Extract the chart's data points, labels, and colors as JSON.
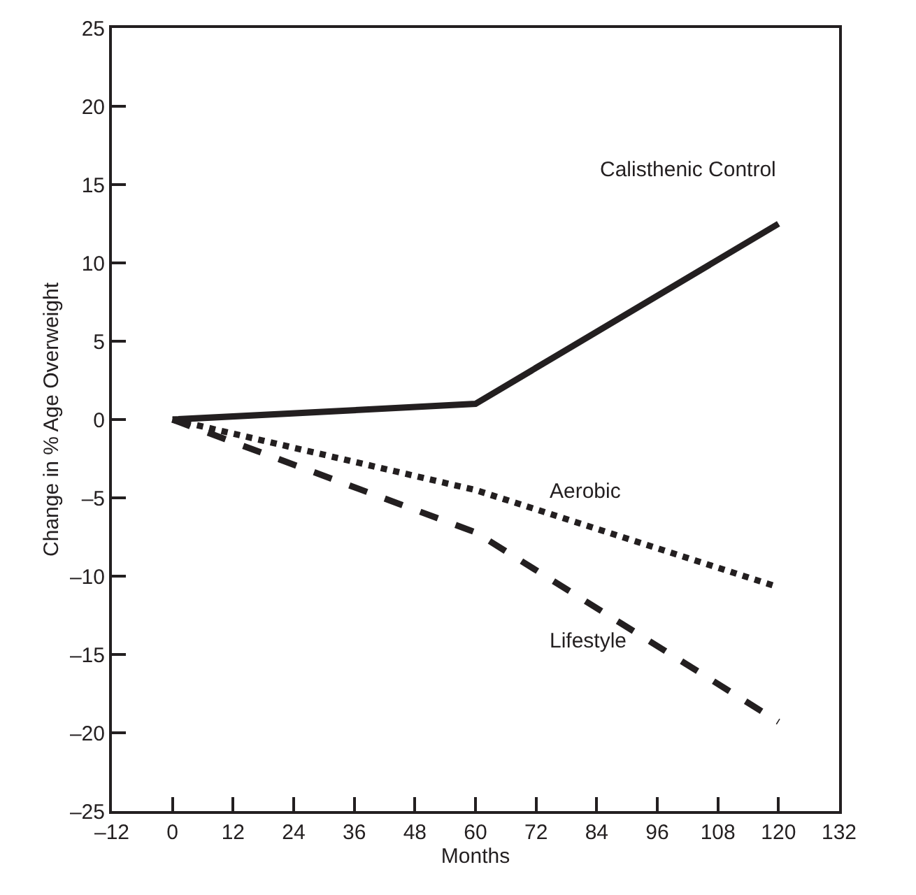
{
  "chart_data": {
    "type": "line",
    "xlabel": "Months",
    "ylabel": "Change in % Age Overweight",
    "x": [
      0,
      60,
      120
    ],
    "series": [
      {
        "name": "Calisthenic Control",
        "color": "#231f20",
        "values": [
          0,
          1,
          12.5
        ],
        "line_style": "solid"
      },
      {
        "name": "Aerobic",
        "color": "#231f20",
        "values": [
          0,
          -4.5,
          -10.7
        ],
        "line_style": "dotted"
      },
      {
        "name": "Lifestyle",
        "color": "#231f20",
        "values": [
          0,
          -7.2,
          -19.3
        ],
        "line_style": "dashed"
      }
    ],
    "xlim": [
      -12,
      132
    ],
    "xticks": [
      {
        "value": -12,
        "label": "–12"
      },
      0,
      12,
      24,
      36,
      48,
      60,
      72,
      84,
      96,
      108,
      120,
      132
    ],
    "ylim": [
      -25,
      25
    ],
    "yticks": [
      {
        "value": -25,
        "label": "–25"
      },
      {
        "value": -20,
        "label": "–20"
      },
      {
        "value": -15,
        "label": "–15"
      },
      {
        "value": -10,
        "label": "–10"
      },
      {
        "value": -5,
        "label": "–5"
      },
      0,
      5,
      10,
      15,
      20,
      25
    ],
    "legend": false,
    "marker": "none"
  }
}
